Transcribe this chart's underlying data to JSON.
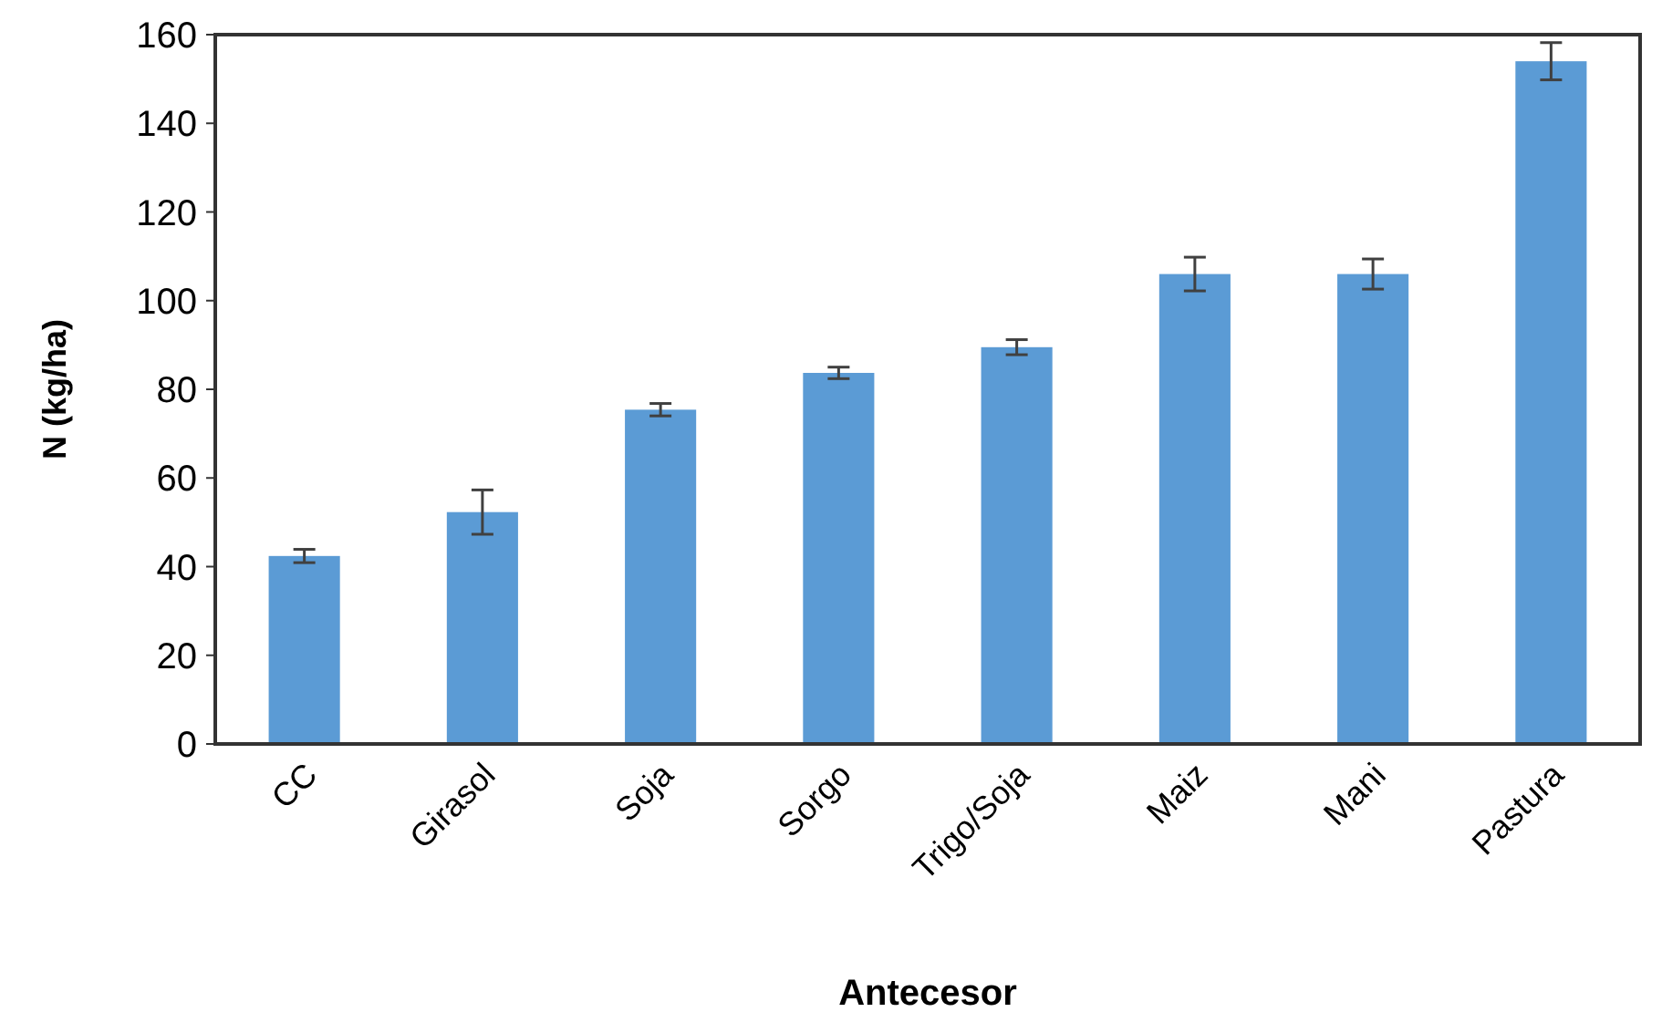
{
  "chart_data": {
    "type": "bar",
    "xlabel": "Antecesor",
    "ylabel": "N (kg/ha)",
    "categories": [
      "CC",
      "Girasol",
      "Soja",
      "Sorgo",
      "Trigo/Soja",
      "Maiz",
      "Mani",
      "Pastura"
    ],
    "values": [
      42.4,
      52.3,
      75.4,
      83.7,
      89.5,
      106,
      106,
      154
    ],
    "errors": [
      1.5,
      5,
      1.4,
      1.3,
      1.7,
      3.8,
      3.4,
      4.2
    ],
    "color": "#5b9bd5",
    "ylim": [
      0,
      160
    ],
    "yticks": [
      0,
      20,
      40,
      60,
      80,
      100,
      120,
      140,
      160
    ],
    "grid": false
  }
}
